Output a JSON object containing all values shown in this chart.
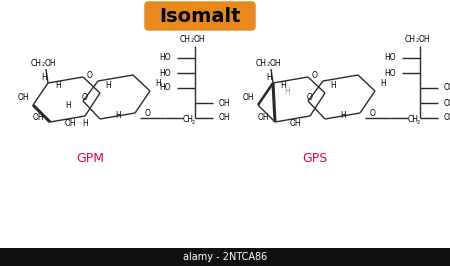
{
  "title": "Isomalt",
  "title_bg": "#E8891A",
  "title_color": "black",
  "label_gpm": "GPM",
  "label_gps": "GPS",
  "label_color": "#E8005A",
  "watermark": "alamy - 2NTCA86",
  "watermark_bg": "#111111",
  "watermark_color": "white",
  "line_color": "#2a2a2a",
  "bg_color": "white"
}
